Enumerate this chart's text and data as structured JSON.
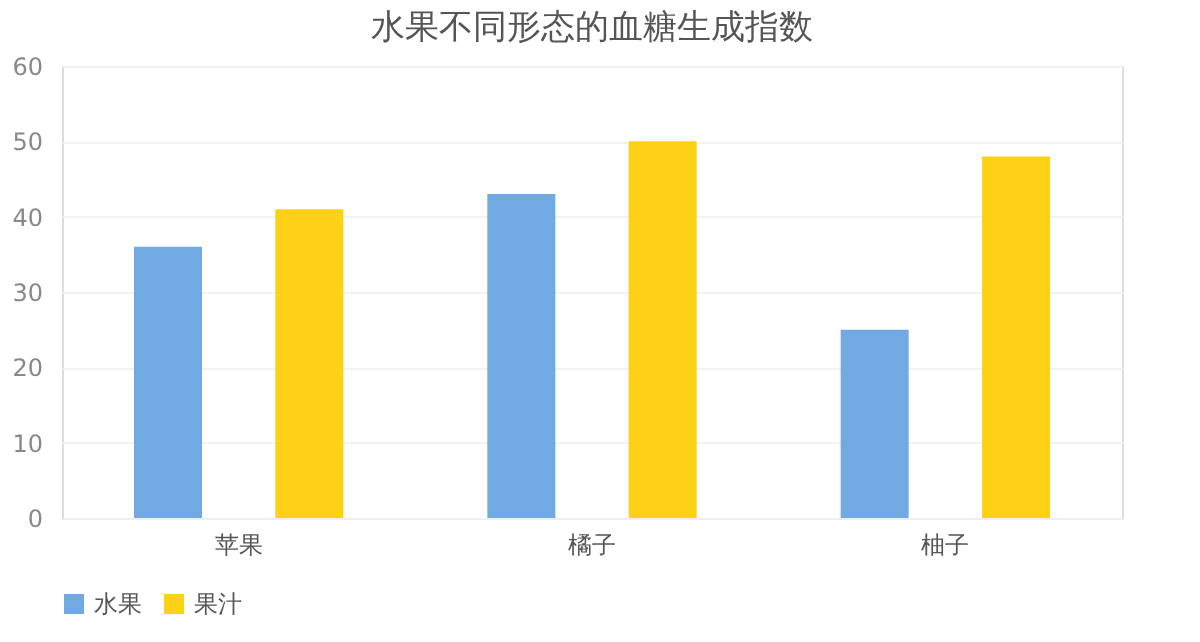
{
  "chart_data": {
    "type": "bar",
    "title": "水果不同形态的血糖生成指数",
    "categories": [
      "苹果",
      "橘子",
      "柚子"
    ],
    "series": [
      {
        "name": "水果",
        "color": "#71a9e2",
        "values": [
          36,
          43,
          25
        ]
      },
      {
        "name": "果汁",
        "color": "#fed016",
        "values": [
          41,
          50,
          48
        ]
      }
    ],
    "ylim": [
      0,
      60
    ],
    "yticks": [
      0,
      10,
      20,
      30,
      40,
      50,
      60
    ],
    "grid": "y",
    "legend": "bottom"
  }
}
